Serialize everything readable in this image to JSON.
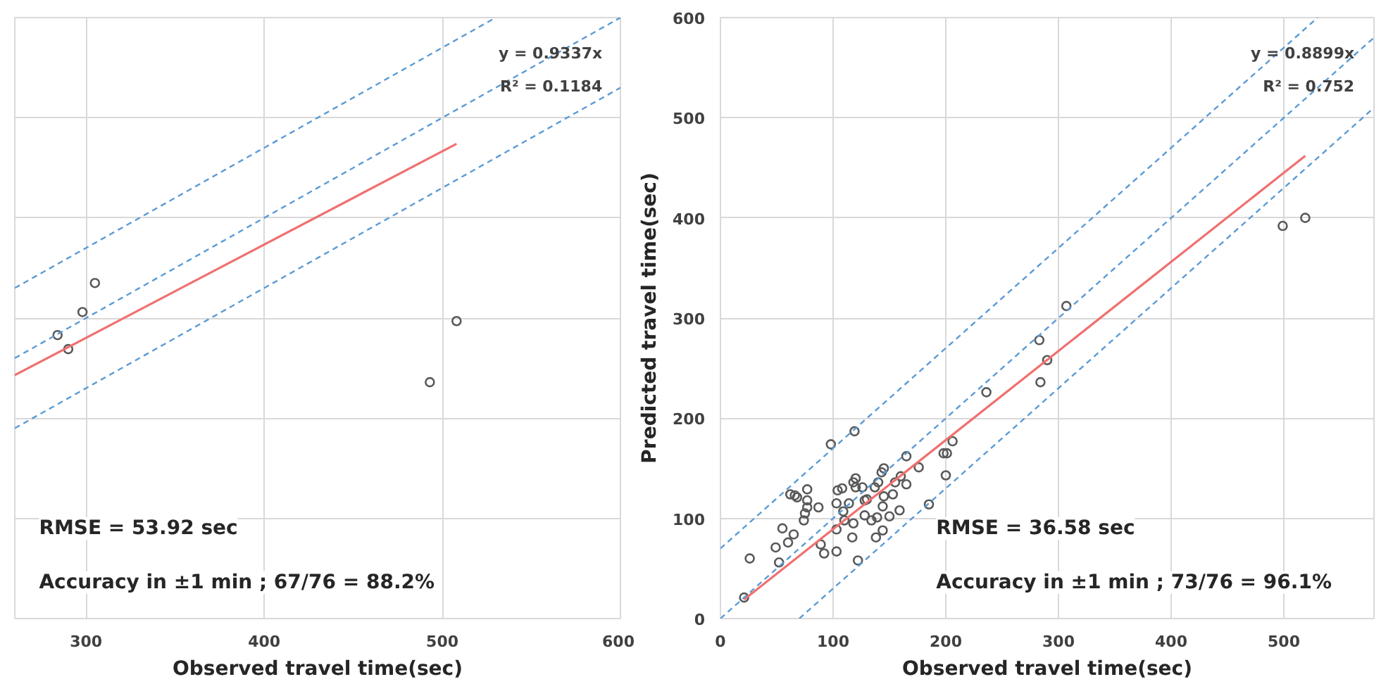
{
  "chart_data": [
    {
      "type": "scatter",
      "xlabel": "Observed travel time(sec)",
      "xlim": [
        260,
        600
      ],
      "ylim": [
        0,
        600
      ],
      "xticks": [
        300,
        400,
        500,
        600
      ],
      "yticks": [
        0,
        100,
        200,
        300,
        400,
        500,
        600
      ],
      "tick_labels": "x",
      "grid": true,
      "annotations": [
        "y = 0.9337x",
        "R² = 0.1184",
        "RMSE = 53.92 sec",
        "Accuracy in ±1 min ; 67/76 = 88.2%"
      ],
      "series": [
        {
          "marker": "circle",
          "color": "#595959",
          "x": [
            305,
            298,
            284,
            290,
            493,
            508
          ],
          "values": [
            335,
            306,
            283,
            269,
            236,
            297
          ]
        },
        {
          "type": "line",
          "color": "#f07070",
          "line_style": "solid",
          "x": [
            260,
            508
          ],
          "values": [
            243,
            474
          ]
        },
        {
          "type": "line",
          "color": "#5b9bd5",
          "line_style": "dashed",
          "x": [
            260,
            530
          ],
          "values": [
            330,
            600
          ]
        },
        {
          "type": "line",
          "color": "#5b9bd5",
          "line_style": "dashed",
          "x": [
            260,
            600
          ],
          "values": [
            260,
            600
          ]
        },
        {
          "type": "line",
          "color": "#5b9bd5",
          "line_style": "dashed",
          "x": [
            260,
            600
          ],
          "values": [
            190,
            530
          ]
        }
      ]
    },
    {
      "type": "scatter",
      "xlabel": "Observed travel time(sec)",
      "ylabel": "Predicted travel time(sec)",
      "xlim": [
        0,
        580
      ],
      "ylim": [
        0,
        600
      ],
      "xticks": [
        0,
        100,
        200,
        300,
        400,
        500
      ],
      "yticks": [
        0,
        100,
        200,
        300,
        400,
        500,
        600
      ],
      "grid": true,
      "annotations": [
        "y = 0.8899x",
        "R² = 0.752",
        "RMSE = 36.58 sec",
        "Accuracy in ±1 min ; 73/76 = 96.1%"
      ],
      "series": [
        {
          "marker": "circle",
          "color": "#595959",
          "x": [
            21,
            26,
            52,
            49,
            55,
            60,
            65,
            62,
            66,
            68,
            77,
            77,
            77,
            75,
            74,
            87,
            98,
            89,
            92,
            103,
            103,
            103,
            104,
            108,
            109,
            110,
            114,
            117,
            118,
            119,
            120,
            118,
            120,
            122,
            126,
            128,
            128,
            130,
            134,
            137,
            138,
            139,
            140,
            144,
            144,
            145,
            145,
            143,
            150,
            153,
            155,
            159,
            160,
            165,
            165,
            176,
            185,
            198,
            201,
            200,
            206,
            236,
            283,
            284,
            290,
            307,
            499,
            519
          ],
          "values": [
            21,
            60,
            56,
            71,
            90,
            76,
            84,
            124,
            123,
            121,
            129,
            118,
            111,
            105,
            98,
            111,
            174,
            74,
            65,
            67,
            89,
            115,
            128,
            130,
            107,
            98,
            115,
            81,
            95,
            187,
            140,
            136,
            131,
            58,
            131,
            118,
            103,
            119,
            98,
            131,
            81,
            101,
            136,
            88,
            112,
            122,
            150,
            146,
            102,
            124,
            136,
            108,
            142,
            134,
            162,
            151,
            114,
            165,
            165,
            143,
            177,
            226,
            278,
            236,
            258,
            312,
            392,
            400
          ]
        },
        {
          "type": "line",
          "color": "#f07070",
          "line_style": "solid",
          "x": [
            21,
            519
          ],
          "values": [
            19,
            462
          ]
        },
        {
          "type": "line",
          "color": "#5b9bd5",
          "line_style": "dashed",
          "x": [
            0,
            530
          ],
          "values": [
            70,
            600
          ]
        },
        {
          "type": "line",
          "color": "#5b9bd5",
          "line_style": "dashed",
          "x": [
            0,
            580
          ],
          "values": [
            0,
            580
          ]
        },
        {
          "type": "line",
          "color": "#5b9bd5",
          "line_style": "dashed",
          "x": [
            70,
            580
          ],
          "values": [
            0,
            510
          ]
        }
      ]
    }
  ]
}
